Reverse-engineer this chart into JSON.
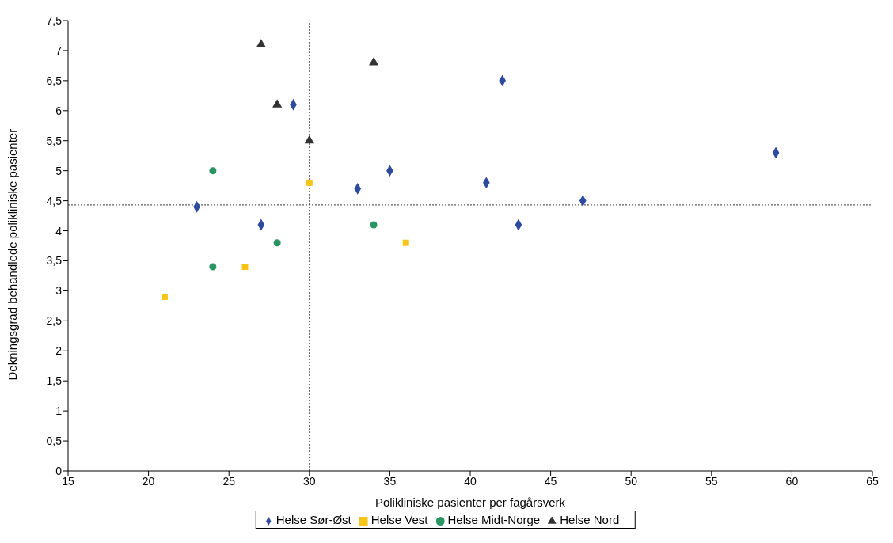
{
  "chart_data": {
    "type": "scatter",
    "xlabel": "Polikliniske pasienter per fagårsverk",
    "ylabel": "Dekningsgrad behandlede polikliniske pasienter",
    "xlim": [
      15,
      65
    ],
    "xticks": [
      15,
      20,
      25,
      30,
      35,
      40,
      45,
      50,
      55,
      60,
      65
    ],
    "ylim": [
      0,
      7.5
    ],
    "yticks": [
      0,
      {
        "value": 0.5,
        "label": "0,5"
      },
      1,
      {
        "value": 1.5,
        "label": "1,5"
      },
      2,
      {
        "value": 2.5,
        "label": "2,5"
      },
      3,
      {
        "value": 3.5,
        "label": "3,5"
      },
      4,
      {
        "value": 4.5,
        "label": "4,5"
      },
      5,
      {
        "value": 5.5,
        "label": "5,5"
      },
      6,
      {
        "value": 6.5,
        "label": "6,5"
      },
      7,
      {
        "value": 7.5,
        "label": "7,5"
      }
    ],
    "grid": false,
    "legend": "bottom",
    "series": [
      {
        "name": "Helse Sør-Øst",
        "color": "#2e4a9e",
        "marker": "diamond",
        "x": [
          23,
          27,
          29,
          33,
          35,
          41,
          42,
          43,
          47,
          59
        ],
        "values": [
          4.4,
          4.1,
          6.1,
          4.7,
          5.0,
          4.8,
          6.5,
          4.1,
          4.5,
          5.3
        ]
      },
      {
        "name": "Helse Vest",
        "color": "#f5c518",
        "marker": "square",
        "x": [
          21,
          26,
          30,
          36
        ],
        "values": [
          2.9,
          3.4,
          4.8,
          3.8
        ]
      },
      {
        "name": "Helse Midt-Norge",
        "color": "#2a9463",
        "marker": "circle",
        "x": [
          24,
          24,
          28,
          34
        ],
        "values": [
          5.0,
          3.4,
          3.8,
          4.1
        ]
      },
      {
        "name": "Helse Nord",
        "color": "#333333",
        "marker": "triangle",
        "x": [
          27,
          28,
          30,
          34
        ],
        "values": [
          7.1,
          6.1,
          5.5,
          6.8
        ]
      }
    ],
    "ref_lines": [
      {
        "axis": "x",
        "value": 30,
        "line_style": "dotted",
        "color": "#333333"
      },
      {
        "axis": "y",
        "value": 4.43,
        "line_style": "dotted",
        "color": "#333333"
      }
    ]
  }
}
